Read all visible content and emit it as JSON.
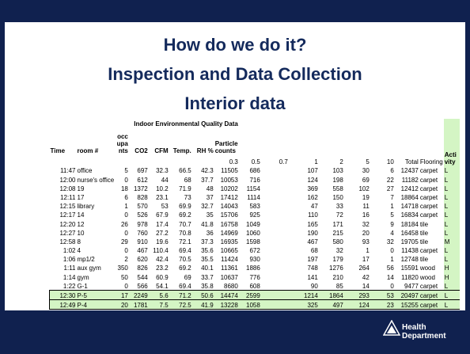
{
  "slide": {
    "title_lines": [
      "How do we do it?",
      "Inspection and Data Collection",
      "Interior data"
    ],
    "table": {
      "group_header": "Indoor Environmental Quality Data",
      "columns": [
        "Time",
        "room #",
        "occupants",
        "CO2",
        "CFM",
        "Temp.",
        "RH %",
        "Particle counts",
        "0.3",
        "0.5",
        "0.7",
        "1",
        "2",
        "5",
        "10",
        "Total",
        "Flooring",
        "Activity"
      ],
      "rows": [
        [
          "11:47",
          "office",
          5,
          697,
          32.3,
          66.5,
          42.3,
          11505,
          686,
          null,
          107,
          103,
          30,
          6,
          12437,
          "carpet",
          "L"
        ],
        [
          "12:00",
          "nurse's office",
          0,
          612,
          44,
          68,
          37.7,
          10053,
          716,
          null,
          124,
          198,
          69,
          22,
          11182,
          "carpet",
          "L"
        ],
        [
          "12:08",
          "19",
          18,
          1372,
          10.2,
          71.9,
          48,
          10202,
          1154,
          null,
          369,
          558,
          102,
          27,
          12412,
          "carpet",
          "L"
        ],
        [
          "12:11",
          "17",
          6,
          828,
          23.1,
          73,
          37,
          17412,
          1114,
          null,
          162,
          150,
          19,
          7,
          18864,
          "carpet",
          "L"
        ],
        [
          "12:15",
          "library",
          1,
          570,
          53,
          69.9,
          32.7,
          14043,
          583,
          null,
          47,
          33,
          11,
          1,
          14718,
          "carpet",
          "L"
        ],
        [
          "12:17",
          "14",
          0,
          526,
          67.9,
          69.2,
          35,
          15706,
          925,
          null,
          110,
          72,
          16,
          5,
          16834,
          "carpet",
          "L"
        ],
        [
          "12:20",
          "12",
          26,
          978,
          17.4,
          70.7,
          41.8,
          16758,
          1049,
          null,
          165,
          171,
          32,
          9,
          18184,
          "tile",
          "L"
        ],
        [
          "12:27",
          "10",
          0,
          760,
          27.2,
          70.8,
          36,
          14969,
          1060,
          null,
          190,
          215,
          20,
          4,
          16458,
          "tile",
          "L"
        ],
        [
          "12:58",
          "8",
          29,
          910,
          19.6,
          72.1,
          37.3,
          16935,
          1598,
          null,
          467,
          580,
          93,
          32,
          19705,
          "tile",
          "M"
        ],
        [
          "1:02",
          "4",
          0,
          467,
          110.4,
          69.4,
          35.6,
          10665,
          672,
          null,
          68,
          32,
          1,
          0,
          11438,
          "carpet",
          "L"
        ],
        [
          "1:06",
          "mp1/2",
          2,
          620,
          42.4,
          70.5,
          35.5,
          11424,
          930,
          null,
          197,
          179,
          17,
          1,
          12748,
          "tile",
          "L"
        ],
        [
          "1:11",
          "aux gym",
          350,
          826,
          23.2,
          69.2,
          40.1,
          11361,
          1886,
          null,
          748,
          1276,
          264,
          56,
          15591,
          "wood",
          "H"
        ],
        [
          "1:14",
          "gym",
          50,
          544,
          60.9,
          69,
          33.7,
          10637,
          776,
          null,
          141,
          210,
          42,
          14,
          11820,
          "wood",
          "H"
        ],
        [
          "1:22",
          "G-1",
          0,
          566,
          54.1,
          69.4,
          35.8,
          8680,
          608,
          null,
          90,
          85,
          14,
          0,
          9477,
          "carpet",
          "L"
        ],
        [
          "12:30",
          "P-5",
          17,
          2249,
          5.6,
          71.2,
          50.6,
          14474,
          2599,
          null,
          1214,
          1864,
          293,
          53,
          20497,
          "carpet",
          "L"
        ],
        [
          "12:49",
          "P-4",
          20,
          1781,
          7.5,
          72.5,
          41.9,
          13228,
          1058,
          null,
          325,
          497,
          124,
          23,
          15255,
          "carpet",
          "L"
        ]
      ]
    },
    "logo": "Health Department"
  }
}
